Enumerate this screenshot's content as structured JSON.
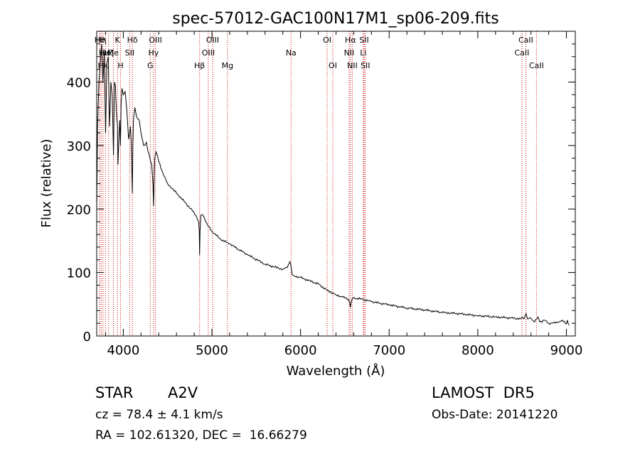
{
  "chart_data": {
    "type": "line",
    "title": "spec-57012-GAC100N17M1_sp06-209.fits",
    "xlabel": "Wavelength (Å)",
    "ylabel": "Flux (relative)",
    "xlim": [
      3700,
      9100
    ],
    "ylim": [
      0,
      480
    ],
    "xticks": [
      4000,
      5000,
      6000,
      7000,
      8000,
      9000
    ],
    "yticks": [
      0,
      100,
      200,
      300,
      400
    ],
    "grid": false,
    "line_color": "#000000",
    "marker_color": "#cc0000",
    "series": [
      {
        "x": [
          3700,
          3710,
          3725,
          3740,
          3755,
          3770,
          3785,
          3800,
          3815,
          3830,
          3845,
          3860,
          3875,
          3889,
          3900,
          3910,
          3925,
          3935,
          3940,
          3950,
          3960,
          3968,
          3975,
          3985,
          4000,
          4020,
          4040,
          4060,
          4080,
          4090,
          4095,
          4102,
          4108,
          4115,
          4130,
          4150,
          4180,
          4200,
          4230,
          4260,
          4280,
          4300,
          4320,
          4335,
          4341,
          4348,
          4355,
          4370,
          4400,
          4450,
          4500,
          4600,
          4700,
          4780,
          4820,
          4850,
          4857,
          4861,
          4866,
          4875,
          4900,
          4950,
          5000,
          5100,
          5200,
          5400,
          5600,
          5800,
          5850,
          5880,
          5893,
          5905,
          5920,
          6000,
          6200,
          6300,
          6400,
          6500,
          6540,
          6555,
          6563,
          6570,
          6590,
          6700,
          6800,
          7000,
          7200,
          7400,
          7600,
          7800,
          8000,
          8200,
          8400,
          8480,
          8500,
          8520,
          8545,
          8560,
          8600,
          8640,
          8680,
          8700,
          8750,
          8800,
          8900,
          8950,
          9000,
          9010,
          9030
        ],
        "y": [
          200,
          330,
          400,
          430,
          460,
          400,
          445,
          320,
          430,
          440,
          330,
          400,
          380,
          285,
          400,
          395,
          345,
          330,
          270,
          310,
          340,
          300,
          365,
          390,
          380,
          385,
          355,
          310,
          330,
          300,
          270,
          225,
          300,
          340,
          360,
          345,
          340,
          320,
          300,
          305,
          290,
          280,
          270,
          240,
          205,
          250,
          280,
          290,
          275,
          255,
          240,
          225,
          210,
          197,
          190,
          180,
          165,
          128,
          165,
          190,
          190,
          175,
          165,
          152,
          145,
          128,
          113,
          105,
          108,
          117,
          110,
          97,
          95,
          92,
          82,
          72,
          65,
          60,
          58,
          52,
          45,
          52,
          60,
          58,
          54,
          49,
          44,
          41,
          37,
          35,
          32,
          30,
          28,
          27,
          30,
          27,
          35,
          27,
          28,
          22,
          30,
          22,
          25,
          20,
          21,
          25,
          19,
          25,
          17
        ]
      }
    ],
    "lines": [
      {
        "wl": 3734,
        "labels": [
          "Hθ"
        ],
        "row": 0
      },
      {
        "wl": 3750,
        "labels": [
          "Hη"
        ],
        "row": 0
      },
      {
        "wl": 3771,
        "labels": [
          "Hι",
          "Hκ"
        ],
        "row": 1
      },
      {
        "wl": 3798,
        "labels": [
          "Hε"
        ],
        "row": 1
      },
      {
        "wl": 3835,
        "labels": [
          "Hζ"
        ],
        "row": 1
      },
      {
        "wl": 3889,
        "labels": [
          "He"
        ],
        "row": 1
      },
      {
        "wl": 3934,
        "labels": [
          "K"
        ],
        "row": 0
      },
      {
        "wl": 3969,
        "labels": [
          "H"
        ],
        "row": 2
      },
      {
        "wl": 4072,
        "labels": [
          "SII"
        ],
        "row": 1
      },
      {
        "wl": 4102,
        "labels": [
          "Hδ"
        ],
        "row": 0
      },
      {
        "wl": 4304,
        "labels": [
          "G"
        ],
        "row": 2
      },
      {
        "wl": 4341,
        "labels": [
          "Hγ"
        ],
        "row": 1
      },
      {
        "wl": 4363,
        "labels": [
          "OIII"
        ],
        "row": 0
      },
      {
        "wl": 4861,
        "labels": [
          "Hβ"
        ],
        "row": 2
      },
      {
        "wl": 4959,
        "labels": [
          "OIII"
        ],
        "row": 1
      },
      {
        "wl": 5007,
        "labels": [
          "OIII"
        ],
        "row": 0
      },
      {
        "wl": 5175,
        "labels": [
          "Mg"
        ],
        "row": 2
      },
      {
        "wl": 5893,
        "labels": [
          "Na"
        ],
        "row": 1
      },
      {
        "wl": 6300,
        "labels": [
          "OI"
        ],
        "row": 0
      },
      {
        "wl": 6364,
        "labels": [
          "OI"
        ],
        "row": 2
      },
      {
        "wl": 6548,
        "labels": [
          "NII"
        ],
        "row": 1
      },
      {
        "wl": 6563,
        "labels": [
          "Hα"
        ],
        "row": 0
      },
      {
        "wl": 6584,
        "labels": [
          "NII"
        ],
        "row": 2
      },
      {
        "wl": 6708,
        "labels": [
          "Li"
        ],
        "row": 1
      },
      {
        "wl": 6717,
        "labels": [
          "SII"
        ],
        "row": 0
      },
      {
        "wl": 6731,
        "labels": [
          "SII"
        ],
        "row": 2
      },
      {
        "wl": 8498,
        "labels": [
          "CaII"
        ],
        "row": 1
      },
      {
        "wl": 8542,
        "labels": [
          "CaII"
        ],
        "row": 0
      },
      {
        "wl": 8662,
        "labels": [
          "CaII"
        ],
        "row": 2
      }
    ],
    "line_label_glyphs": {
      "Hθ": "H",
      "Hη": "H",
      "Hι": "Ca",
      "Hκ": "Ca",
      "Hε": "I",
      "Hζ": "Hel",
      "He": "He",
      "K": "K",
      "H": "H"
    }
  },
  "info": {
    "object_class": "STAR",
    "subclass": "A2V",
    "survey": "LAMOST  DR5",
    "cz": "cz = 78.4 ± 4.1 km/s",
    "obs_date": "Obs-Date: 20141220",
    "coords": "RA = 102.61320, DEC =  16.66279"
  }
}
